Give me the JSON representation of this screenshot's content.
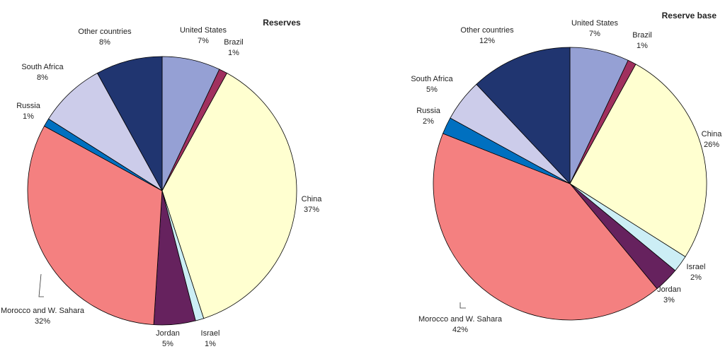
{
  "chart_data": [
    {
      "type": "pie",
      "title": "Reserves",
      "categories": [
        "United States",
        "Brazil",
        "China",
        "Israel",
        "Jordan",
        "Morocco and W. Sahara",
        "Russia",
        "South Africa",
        "Other countries"
      ],
      "values": [
        7,
        1,
        37,
        1,
        5,
        32,
        1,
        8,
        8
      ],
      "value_labels": [
        "7%",
        "1%",
        "37%",
        "1%",
        "5%",
        "32%",
        "1%",
        "8%",
        "8%"
      ],
      "colors": [
        "#95a0d4",
        "#a0305e",
        "#ffffd0",
        "#cceef5",
        "#66225e",
        "#f48080",
        "#0070c0",
        "#ccccea",
        "#203570"
      ]
    },
    {
      "type": "pie",
      "title": "Reserve base",
      "categories": [
        "United States",
        "Brazil",
        "China",
        "Israel",
        "Jordan",
        "Morocco and W. Sahara",
        "Russia",
        "South Africa",
        "Other countries"
      ],
      "values": [
        7,
        1,
        26,
        2,
        3,
        42,
        2,
        5,
        12
      ],
      "value_labels": [
        "7%",
        "1%",
        "26%",
        "2%",
        "3%",
        "42%",
        "2%",
        "5%",
        "12%"
      ],
      "colors": [
        "#95a0d4",
        "#a0305e",
        "#ffffd0",
        "#cceef5",
        "#66225e",
        "#f48080",
        "#0070c0",
        "#ccccea",
        "#203570"
      ]
    }
  ]
}
